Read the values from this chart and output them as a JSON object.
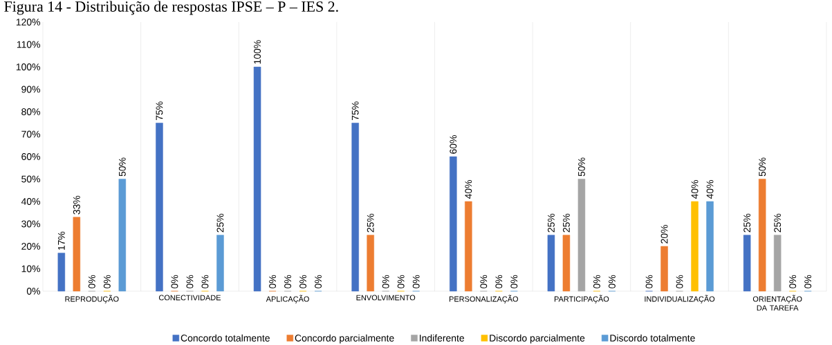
{
  "chart_data": {
    "type": "bar",
    "title": "Figura 14 - Distribuição de respostas IPSE – P – IES 2.",
    "categories": [
      "REPRODUÇÃO",
      "CONECTIVIDADE",
      "APLICAÇÃO",
      "ENVOLVIMENTO",
      "PERSONALIZAÇÃO",
      "PARTICIPAÇÃO",
      "INDIVIDUALIZAÇÃO",
      "ORIENTAÇÃO DA TAREFA"
    ],
    "series": [
      {
        "name": "Concordo totalmente",
        "color": "#4472c4",
        "values": [
          17,
          75,
          100,
          75,
          60,
          25,
          0,
          25
        ],
        "value_labels": [
          "17%",
          "75%",
          "100%",
          "75%",
          "60%",
          "25%",
          "0%",
          "25%"
        ]
      },
      {
        "name": "Concordo parcialmente",
        "color": "#ed7d31",
        "values": [
          33,
          0,
          0,
          25,
          40,
          25,
          20,
          50
        ],
        "value_labels": [
          "33%",
          "0%",
          "0%",
          "25%",
          "40%",
          "25%",
          "20%",
          "50%"
        ]
      },
      {
        "name": "Indiferente",
        "color": "#a5a5a5",
        "values": [
          0,
          0,
          0,
          0,
          0,
          50,
          0,
          25
        ],
        "value_labels": [
          "0%",
          "0%",
          "0%",
          "0%",
          "0%",
          "50%",
          "0%",
          "25%"
        ]
      },
      {
        "name": "Discordo parcialmente",
        "color": "#ffc000",
        "values": [
          0,
          0,
          0,
          0,
          0,
          0,
          40,
          0
        ],
        "value_labels": [
          "0%",
          "0%",
          "0%",
          "0%",
          "0%",
          "0%",
          "40%",
          "0%"
        ]
      },
      {
        "name": "Discordo totalmente",
        "color": "#5b9bd5",
        "values": [
          50,
          25,
          0,
          0,
          0,
          0,
          40,
          0
        ],
        "value_labels": [
          "50%",
          "25%",
          "0%",
          "0%",
          "0%",
          "0%",
          "40%",
          "0%"
        ]
      }
    ],
    "ylim": [
      0,
      120
    ],
    "yticks": [
      {
        "value": 0,
        "label": "0%"
      },
      {
        "value": 10,
        "label": "10%"
      },
      {
        "value": 20,
        "label": "20%"
      },
      {
        "value": 30,
        "label": "30%"
      },
      {
        "value": 40,
        "label": "40%"
      },
      {
        "value": 50,
        "label": "50%"
      },
      {
        "value": 60,
        "label": "60%"
      },
      {
        "value": 70,
        "label": "70%"
      },
      {
        "value": 80,
        "label": "80%"
      },
      {
        "value": 90,
        "label": "90%"
      },
      {
        "value": 100,
        "label": "100%"
      },
      {
        "value": 110,
        "label": "110%"
      },
      {
        "value": 120,
        "label": "120%"
      }
    ],
    "grid": "x",
    "legend": "bottom"
  }
}
